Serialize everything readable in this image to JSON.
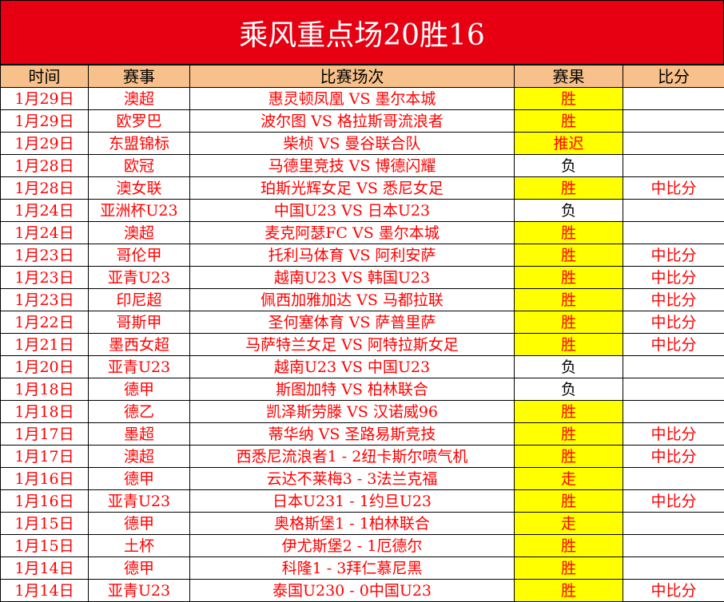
{
  "title": "乘风重点场20胜16",
  "colors": {
    "title_bg": "#e60012",
    "header_bg": "#f8c08a",
    "win_bg": "#ffff00",
    "text": "#ff0000"
  },
  "headers": [
    "时间",
    "赛事",
    "比赛场次",
    "赛果",
    "比分"
  ],
  "rows": [
    [
      "1月29日",
      "澳超",
      "惠灵顿凤凰 VS 墨尔本城",
      "胜",
      ""
    ],
    [
      "1月29日",
      "欧罗巴",
      "波尔图 VS 格拉斯哥流浪者",
      "胜",
      ""
    ],
    [
      "1月29日",
      "东盟锦标",
      "柴桢 VS 曼谷联合队",
      "推迟",
      ""
    ],
    [
      "1月28日",
      "欧冠",
      "马德里竞技 VS 博德闪耀",
      "负",
      ""
    ],
    [
      "1月28日",
      "澳女联",
      "珀斯光辉女足 VS 悉尼女足",
      "胜",
      "中比分"
    ],
    [
      "1月24日",
      "亚洲杯U23",
      "中国U23 VS 日本U23",
      "负",
      ""
    ],
    [
      "1月24日",
      "澳超",
      "麦克阿瑟FC VS 墨尔本城",
      "胜",
      ""
    ],
    [
      "1月23日",
      "哥伦甲",
      "托利马体育 VS 阿利安萨",
      "胜",
      "中比分"
    ],
    [
      "1月23日",
      "亚青U23",
      "越南U23 VS 韩国U23",
      "胜",
      "中比分"
    ],
    [
      "1月23日",
      "印尼超",
      "佩西加雅加达 VS 马都拉联",
      "胜",
      "中比分"
    ],
    [
      "1月22日",
      "哥斯甲",
      "圣何塞体育 VS 萨普里萨",
      "胜",
      "中比分"
    ],
    [
      "1月21日",
      "墨西女超",
      "马萨特兰女足 VS 阿特拉斯女足",
      "胜",
      "中比分"
    ],
    [
      "1月20日",
      "亚青U23",
      "越南U23 VS 中国U23",
      "负",
      ""
    ],
    [
      "1月18日",
      "德甲",
      "斯图加特 VS 柏林联合",
      "负",
      ""
    ],
    [
      "1月18日",
      "德乙",
      "凯泽斯劳滕 VS 汉诺威96",
      "胜",
      ""
    ],
    [
      "1月17日",
      "墨超",
      "蒂华纳 VS 圣路易斯竞技",
      "胜",
      "中比分"
    ],
    [
      "1月17日",
      "澳超",
      "西悉尼流浪者1 - 2纽卡斯尔喷气机",
      "胜",
      "中比分"
    ],
    [
      "1月16日",
      "德甲",
      "云达不莱梅3 - 3法兰克福",
      "走",
      ""
    ],
    [
      "1月16日",
      "亚青U23",
      "日本U231 - 1约旦U23",
      "胜",
      "中比分"
    ],
    [
      "1月15日",
      "德甲",
      "奥格斯堡1 - 1柏林联合",
      "走",
      ""
    ],
    [
      "1月15日",
      "土杯",
      "伊尤斯堡2 - 1厄德尔",
      "胜",
      ""
    ],
    [
      "1月14日",
      "德甲",
      "科隆1 - 3拜仁慕尼黑",
      "胜",
      ""
    ],
    [
      "1月14日",
      "亚青U23",
      "泰国U230 - 0中国U23",
      "胜",
      "中比分"
    ]
  ]
}
